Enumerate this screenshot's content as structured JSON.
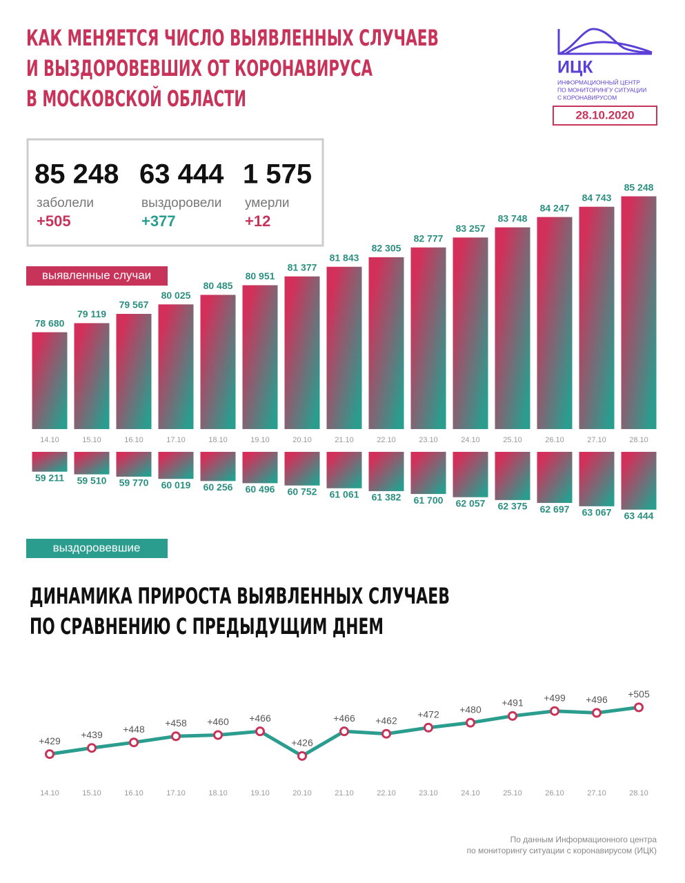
{
  "header": {
    "title": [
      "КАК МЕНЯЕТСЯ ЧИСЛО ВЫЯВЛЕННЫХ СЛУЧАЕВ",
      "И ВЫЗДОРОВЕВШИХ ОТ КОРОНАВИРУСА",
      "В МОСКОВСКОЙ ОБЛАСТИ"
    ],
    "logo": {
      "name": "ИЦК",
      "subtitle": [
        "ИНФОРМАЦИОННЫЙ ЦЕНТР",
        "ПО МОНИТОРИНГУ СИТУАЦИИ",
        "С КОРОНАВИРУСОМ"
      ]
    },
    "date": "28.10.2020"
  },
  "stats": [
    {
      "value": "85 248",
      "label": "заболели",
      "delta": "+505",
      "color": "#c8335a"
    },
    {
      "value": "63 444",
      "label": "выздоровели",
      "delta": "+377",
      "color": "#2a9d8f"
    },
    {
      "value": "1 575",
      "label": "умерли",
      "delta": "+12",
      "color": "#c8335a"
    }
  ],
  "chart_data": [
    {
      "type": "bar",
      "categories": [
        "14.10",
        "15.10",
        "16.10",
        "17.10",
        "18.10",
        "19.10",
        "20.10",
        "21.10",
        "22.10",
        "23.10",
        "24.10",
        "25.10",
        "26.10",
        "27.10",
        "28.10"
      ],
      "series": [
        {
          "name": "выявленные случаи",
          "color": "#c8335a",
          "gradient": [
            "#d2305a",
            "#2a9d8f"
          ],
          "label_color": "#2a8f80",
          "values": [
            78680,
            79119,
            79567,
            80025,
            80485,
            80951,
            81377,
            81843,
            82305,
            82777,
            83257,
            83748,
            84247,
            84743,
            85248
          ],
          "value_labels": [
            "78 680",
            "79 119",
            "79 567",
            "80 025",
            "80 485",
            "80 951",
            "81 377",
            "81 843",
            "82 305",
            "82 777",
            "83 257",
            "83 748",
            "84 247",
            "84 743",
            "85 248"
          ]
        }
      ],
      "ylim": [
        74000,
        86000
      ]
    },
    {
      "type": "bar",
      "inverted": true,
      "series": [
        {
          "name": "выздоровевшие",
          "color": "#2a9d8f",
          "gradient": [
            "#d2305a",
            "#2a9d8f"
          ],
          "label_color": "#2a8f80",
          "values": [
            59211,
            59510,
            59770,
            60019,
            60256,
            60496,
            60752,
            61061,
            61382,
            61700,
            62057,
            62375,
            62697,
            63067,
            63444
          ],
          "value_labels": [
            "59 211",
            "59 510",
            "59 770",
            "60 019",
            "60 256",
            "60 496",
            "60 752",
            "61 061",
            "61 382",
            "61 700",
            "62 057",
            "62 375",
            "62 697",
            "63 067",
            "63 444"
          ]
        }
      ],
      "ylim": [
        57000,
        64000
      ]
    },
    {
      "type": "line",
      "title": [
        "ДИНАМИКА ПРИРОСТА ВЫЯВЛЕННЫХ СЛУЧАЕВ",
        "ПО СРАВНЕНИЮ С ПРЕДЫДУЩИМ ДНЕМ"
      ],
      "categories": [
        "14.10",
        "15.10",
        "16.10",
        "17.10",
        "18.10",
        "19.10",
        "20.10",
        "21.10",
        "22.10",
        "23.10",
        "24.10",
        "25.10",
        "26.10",
        "27.10",
        "28.10"
      ],
      "series": [
        {
          "color": "#2a9d8f",
          "marker_color": "#c8335a",
          "values": [
            429,
            439,
            448,
            458,
            460,
            466,
            426,
            466,
            462,
            472,
            480,
            491,
            499,
            496,
            505
          ],
          "value_labels": [
            "+429",
            "+439",
            "+448",
            "+458",
            "+460",
            "+466",
            "+426",
            "+466",
            "+462",
            "+472",
            "+480",
            "+491",
            "+499",
            "+496",
            "+505"
          ]
        }
      ],
      "ylim": [
        400,
        520
      ]
    }
  ],
  "footer": [
    "По данным Информационного центра",
    "по мониторингу ситуации с коронавирусом (ИЦК)"
  ]
}
